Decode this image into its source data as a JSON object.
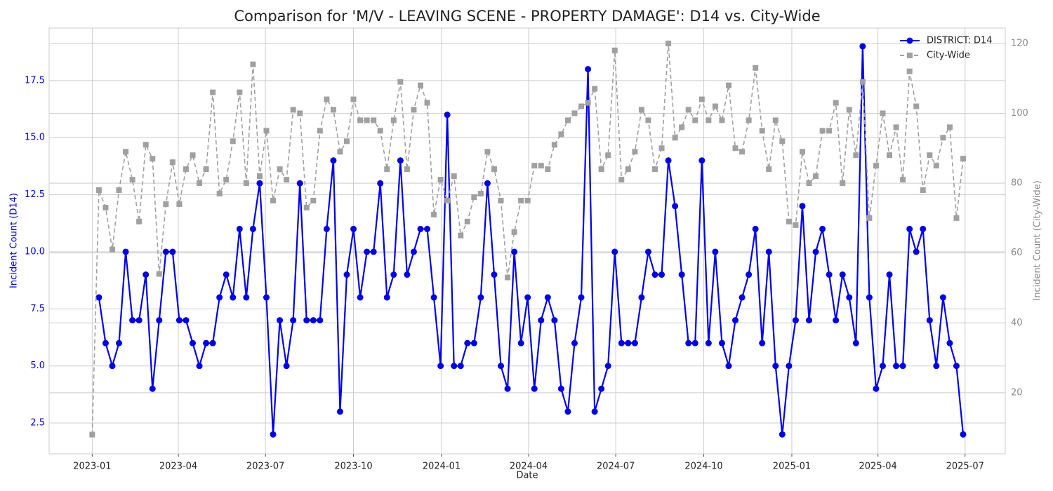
{
  "chart_data": {
    "type": "line",
    "title": "Comparison for 'M/V - LEAVING SCENE - PROPERTY DAMAGE': D14 vs. City-Wide",
    "x_label": "Date",
    "y_label": "Incident Count (D14)",
    "y2_label": "Incident Count (City-Wide)",
    "x": [
      "2023-01-01",
      "2023-01-08",
      "2023-01-15",
      "2023-01-22",
      "2023-01-29",
      "2023-02-05",
      "2023-02-12",
      "2023-02-19",
      "2023-02-26",
      "2023-03-05",
      "2023-03-12",
      "2023-03-19",
      "2023-03-26",
      "2023-04-02",
      "2023-04-09",
      "2023-04-16",
      "2023-04-23",
      "2023-04-30",
      "2023-05-07",
      "2023-05-14",
      "2023-05-21",
      "2023-05-28",
      "2023-06-04",
      "2023-06-11",
      "2023-06-18",
      "2023-06-25",
      "2023-07-02",
      "2023-07-09",
      "2023-07-16",
      "2023-07-23",
      "2023-07-30",
      "2023-08-06",
      "2023-08-13",
      "2023-08-20",
      "2023-08-27",
      "2023-09-03",
      "2023-09-10",
      "2023-09-17",
      "2023-09-24",
      "2023-10-01",
      "2023-10-08",
      "2023-10-15",
      "2023-10-22",
      "2023-10-29",
      "2023-11-05",
      "2023-11-12",
      "2023-11-19",
      "2023-11-26",
      "2023-12-03",
      "2023-12-10",
      "2023-12-17",
      "2023-12-24",
      "2023-12-31",
      "2024-01-07",
      "2024-01-14",
      "2024-01-21",
      "2024-01-28",
      "2024-02-04",
      "2024-02-11",
      "2024-02-18",
      "2024-02-25",
      "2024-03-03",
      "2024-03-10",
      "2024-03-17",
      "2024-03-24",
      "2024-03-31",
      "2024-04-07",
      "2024-04-14",
      "2024-04-21",
      "2024-04-28",
      "2024-05-05",
      "2024-05-12",
      "2024-05-19",
      "2024-05-26",
      "2024-06-02",
      "2024-06-09",
      "2024-06-16",
      "2024-06-23",
      "2024-06-30",
      "2024-07-07",
      "2024-07-14",
      "2024-07-21",
      "2024-07-28",
      "2024-08-04",
      "2024-08-11",
      "2024-08-18",
      "2024-08-25",
      "2024-09-01",
      "2024-09-08",
      "2024-09-15",
      "2024-09-22",
      "2024-09-29",
      "2024-10-06",
      "2024-10-13",
      "2024-10-20",
      "2024-10-27",
      "2024-11-03",
      "2024-11-10",
      "2024-11-17",
      "2024-11-24",
      "2024-12-01",
      "2024-12-08",
      "2024-12-15",
      "2024-12-22",
      "2024-12-29",
      "2025-01-05",
      "2025-01-12",
      "2025-01-19",
      "2025-01-26",
      "2025-02-02",
      "2025-02-09",
      "2025-02-16",
      "2025-02-23",
      "2025-03-02",
      "2025-03-09",
      "2025-03-16",
      "2025-03-23",
      "2025-03-30",
      "2025-04-06",
      "2025-04-13",
      "2025-04-20",
      "2025-04-27",
      "2025-05-04",
      "2025-05-11",
      "2025-05-18",
      "2025-05-25",
      "2025-06-01",
      "2025-06-08",
      "2025-06-15",
      "2025-06-22",
      "2025-06-29"
    ],
    "series": [
      {
        "name": "DISTRICT: D14",
        "color": "#0000ee",
        "style": "solid",
        "marker": "circle",
        "axis": "y",
        "values": [
          null,
          8,
          6,
          5,
          6,
          10,
          7,
          7,
          9,
          4,
          7,
          10,
          10,
          7,
          7,
          6,
          5,
          6,
          6,
          8,
          9,
          8,
          11,
          8,
          11,
          13,
          8,
          2,
          7,
          5,
          7,
          13,
          7,
          7,
          7,
          11,
          14,
          3,
          9,
          11,
          8,
          10,
          10,
          13,
          8,
          9,
          14,
          9,
          10,
          11,
          11,
          8,
          5,
          16,
          5,
          5,
          6,
          6,
          8,
          13,
          9,
          5,
          4,
          10,
          6,
          8,
          4,
          7,
          8,
          7,
          4,
          3,
          6,
          8,
          18,
          3,
          4,
          5,
          10,
          6,
          6,
          6,
          8,
          10,
          9,
          9,
          14,
          12,
          9,
          6,
          6,
          14,
          6,
          10,
          6,
          5,
          7,
          8,
          9,
          11,
          6,
          10,
          5,
          2,
          5,
          7,
          12,
          7,
          10,
          11,
          9,
          7,
          9,
          8,
          6,
          19,
          8,
          4,
          5,
          9,
          5,
          5,
          11,
          10,
          11,
          7,
          5,
          8,
          6,
          5,
          2
        ]
      },
      {
        "name": "City-Wide",
        "color": "#a0a0a0",
        "style": "dashed",
        "marker": "square",
        "axis": "y2",
        "values": [
          8,
          78,
          73,
          61,
          78,
          89,
          81,
          69,
          91,
          87,
          54,
          74,
          86,
          74,
          84,
          88,
          80,
          84,
          106,
          77,
          81,
          92,
          106,
          80,
          114,
          82,
          95,
          75,
          84,
          81,
          101,
          100,
          73,
          75,
          95,
          104,
          101,
          89,
          92,
          104,
          98,
          98,
          98,
          95,
          84,
          98,
          109,
          84,
          101,
          108,
          103,
          71,
          81,
          75,
          82,
          65,
          69,
          76,
          77,
          89,
          84,
          75,
          53,
          66,
          75,
          75,
          85,
          85,
          84,
          91,
          94,
          98,
          100,
          102,
          103,
          107,
          84,
          88,
          118,
          81,
          84,
          89,
          101,
          98,
          84,
          90,
          120,
          93,
          96,
          101,
          98,
          104,
          98,
          102,
          98,
          108,
          90,
          89,
          98,
          113,
          95,
          84,
          98,
          92,
          69,
          68,
          89,
          80,
          82,
          95,
          95,
          103,
          80,
          101,
          88,
          109,
          70,
          85,
          100,
          88,
          96,
          81,
          112,
          102,
          78,
          88,
          85,
          93,
          96,
          70,
          87
        ]
      }
    ],
    "xlim": [
      "2022-11-17",
      "2025-08-12"
    ],
    "xticks": [
      "2023-01",
      "2023-04",
      "2023-07",
      "2023-10",
      "2024-01",
      "2024-04",
      "2024-07",
      "2024-10",
      "2025-01",
      "2025-04",
      "2025-07"
    ],
    "ylim": [
      1.15,
      19.8
    ],
    "yticks": [
      2.5,
      {
        "value": 5,
        "label": "5.0"
      },
      7.5,
      {
        "value": 10,
        "label": "10.0"
      },
      12.5,
      {
        "value": 15,
        "label": "15.0"
      },
      17.5
    ],
    "y2lim": [
      2.5,
      124.4
    ],
    "y2ticks": [
      20,
      40,
      60,
      80,
      100,
      120
    ],
    "grid": true,
    "legend": "upper right"
  }
}
